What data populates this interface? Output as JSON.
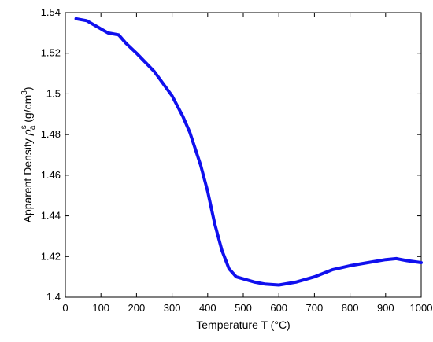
{
  "chart_data": {
    "type": "line",
    "xlabel": "Temperature T (°C)",
    "ylabel_parts": {
      "prefix": "Apparent Density ",
      "symbol": "ρ",
      "superscript": "s",
      "subscript": "a",
      "suffix_start": " (g/cm",
      "suffix_sup": "3",
      "suffix_end": ")"
    },
    "xlim": [
      0,
      1000
    ],
    "ylim": [
      1.4,
      1.54
    ],
    "xticks": [
      0,
      100,
      200,
      300,
      400,
      500,
      600,
      700,
      800,
      900,
      1000
    ],
    "xtick_labels": [
      "0",
      "100",
      "200",
      "300",
      "400",
      "500",
      "600",
      "700",
      "800",
      "900",
      "1000"
    ],
    "yticks": [
      1.4,
      1.42,
      1.44,
      1.46,
      1.48,
      1.5,
      1.52,
      1.54
    ],
    "ytick_labels": [
      "1.4",
      "1.42",
      "1.44",
      "1.46",
      "1.48",
      "1.5",
      "1.52",
      "1.54"
    ],
    "grid": false,
    "series": [
      {
        "color": "#1010ee",
        "x": [
          30,
          60,
          90,
          120,
          150,
          170,
          200,
          250,
          300,
          330,
          350,
          380,
          400,
          420,
          440,
          460,
          480,
          500,
          530,
          560,
          600,
          650,
          700,
          750,
          800,
          850,
          900,
          930,
          960,
          1000
        ],
        "y": [
          1.537,
          1.536,
          1.533,
          1.53,
          1.529,
          1.525,
          1.52,
          1.511,
          1.499,
          1.489,
          1.481,
          1.465,
          1.452,
          1.436,
          1.423,
          1.414,
          1.41,
          1.409,
          1.4075,
          1.4065,
          1.406,
          1.4075,
          1.41,
          1.4135,
          1.4155,
          1.417,
          1.4185,
          1.419,
          1.418,
          1.417
        ]
      }
    ]
  }
}
